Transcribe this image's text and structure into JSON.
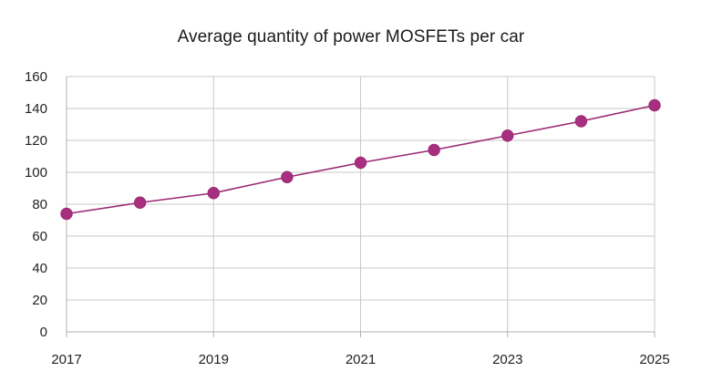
{
  "chart_data": {
    "type": "line",
    "title": "Average quantity of power MOSFETs per car",
    "xlabel": "",
    "ylabel": "",
    "x": [
      2017,
      2018,
      2019,
      2020,
      2021,
      2022,
      2023,
      2024,
      2025
    ],
    "x_tick_labels": [
      "2017",
      "2019",
      "2021",
      "2023",
      "2025"
    ],
    "y_tick_labels": [
      "0",
      "20",
      "40",
      "60",
      "80",
      "100",
      "120",
      "140",
      "160"
    ],
    "xlim": [
      2017,
      2025
    ],
    "ylim": [
      0,
      160
    ],
    "grid": true,
    "legend": "none",
    "series": [
      {
        "name": "Average quantity of power MOSFETs per car",
        "color": "#9b2a73",
        "values": [
          74,
          81,
          87,
          97,
          106,
          114,
          123,
          132,
          142
        ]
      }
    ],
    "colors": {
      "line": "#9b2a73",
      "marker": "#a82f7f",
      "grid": "#c8c8c8",
      "axis": "#b0b0b0"
    }
  }
}
